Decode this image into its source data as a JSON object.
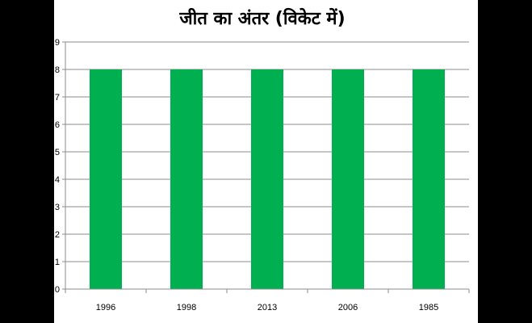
{
  "chart_data": {
    "type": "bar",
    "title": "जीत का अंतर (विकेट में)",
    "xlabel": "",
    "ylabel": "",
    "categories": [
      "1996",
      "1998",
      "2013",
      "2006",
      "1985"
    ],
    "values": [
      8,
      8,
      8,
      8,
      8
    ],
    "ylim": [
      0,
      9
    ],
    "yticks": [
      0,
      1,
      2,
      3,
      4,
      5,
      6,
      7,
      8,
      9
    ],
    "grid": true,
    "legend": "none",
    "bar_color": "#00b050"
  }
}
